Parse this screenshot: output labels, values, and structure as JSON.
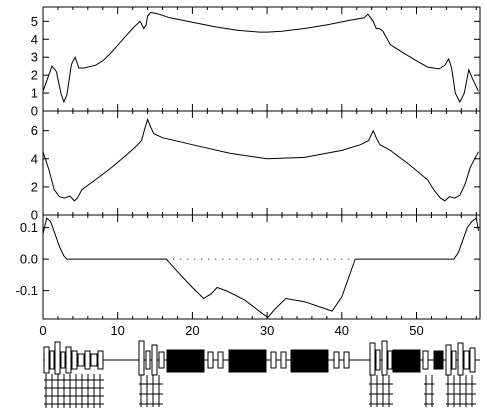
{
  "chart_data": [
    {
      "type": "line",
      "title": "",
      "xlabel": "",
      "ylabel": "",
      "xlim": [
        0,
        58.5
      ],
      "ylim": [
        0,
        5.8
      ],
      "yticks": [
        0,
        1,
        2,
        3,
        4,
        5
      ],
      "ytick_labels": [
        "0",
        "1",
        "2",
        "3",
        "4",
        "5"
      ],
      "series": [
        {
          "x": [
            0,
            0.6,
            1.2,
            1.8,
            2.4,
            2.8,
            3.2,
            3.8,
            4.3,
            4.8,
            5.5,
            7.0,
            8.0,
            9.0,
            10.5,
            12.0,
            13.0,
            13.5,
            13.8,
            14.0,
            14.4,
            15.0,
            15.5,
            17,
            20,
            23,
            26,
            29,
            30,
            32,
            35,
            38,
            41,
            43,
            43.5,
            44.2,
            44.6,
            45.0,
            45.5,
            46.5,
            48,
            50,
            51.5,
            53,
            53.8,
            54.3,
            54.7,
            55.2,
            55.8,
            56.4,
            57.0,
            57.5,
            58.3
          ],
          "y": [
            1.1,
            1.8,
            2.5,
            2.2,
            1.0,
            0.5,
            0.9,
            2.6,
            3.0,
            2.4,
            2.4,
            2.55,
            2.8,
            3.2,
            3.9,
            4.6,
            5.0,
            4.6,
            4.8,
            5.3,
            5.5,
            5.45,
            5.4,
            5.2,
            4.95,
            4.7,
            4.5,
            4.4,
            4.4,
            4.45,
            4.6,
            4.8,
            5.05,
            5.2,
            5.4,
            5.0,
            4.6,
            4.6,
            4.45,
            3.7,
            3.3,
            2.8,
            2.45,
            2.35,
            2.55,
            2.9,
            2.4,
            1.0,
            0.5,
            1.0,
            2.3,
            1.8,
            1.1
          ]
        }
      ]
    },
    {
      "type": "line",
      "title": "",
      "xlabel": "",
      "ylabel": "",
      "xlim": [
        0,
        58.5
      ],
      "ylim": [
        0,
        7.4
      ],
      "yticks": [
        0,
        2,
        4,
        6
      ],
      "ytick_labels": [
        "0",
        "2",
        "4",
        "6"
      ],
      "series": [
        {
          "x": [
            0,
            0.8,
            1.5,
            2.2,
            2.9,
            3.6,
            4.2,
            4.6,
            5.2,
            7,
            9,
            11,
            12.5,
            13.2,
            13.6,
            14.0,
            14.3,
            14.8,
            16,
            20,
            25,
            30,
            35,
            40,
            42.5,
            43.6,
            44.2,
            44.6,
            45.1,
            46.5,
            49,
            51.5,
            52.3,
            53.2,
            53.8,
            54.4,
            55.1,
            55.8,
            56.5,
            57.2,
            58.3
          ],
          "y": [
            4.5,
            3.2,
            1.8,
            1.3,
            1.2,
            1.35,
            1.0,
            1.2,
            1.8,
            2.5,
            3.3,
            4.2,
            4.9,
            5.3,
            6.1,
            6.8,
            6.4,
            5.8,
            5.5,
            5.0,
            4.4,
            4.0,
            4.1,
            4.6,
            5.0,
            5.3,
            6.0,
            5.5,
            5.0,
            4.6,
            3.6,
            2.5,
            1.8,
            1.2,
            1.0,
            1.3,
            1.2,
            1.4,
            2.2,
            3.4,
            4.5
          ]
        }
      ]
    },
    {
      "type": "line",
      "title": "",
      "xlabel": "",
      "ylabel": "",
      "xlim": [
        0,
        58.5
      ],
      "ylim": [
        -0.19,
        0.14
      ],
      "yticks": [
        -0.1,
        0.0,
        0.1
      ],
      "ytick_labels": [
        "-0.1",
        "0.0",
        "0.1"
      ],
      "xticks": [
        0,
        10,
        20,
        30,
        40,
        50
      ],
      "xtick_labels": [
        "0",
        "10",
        "20",
        "30",
        "40",
        "50"
      ],
      "reference_line": {
        "y": 0,
        "style": "dotted",
        "from_x": 16.5,
        "to_x": 41.8
      },
      "series": [
        {
          "x": [
            0,
            0.5,
            1.0,
            1.6,
            2.2,
            2.8,
            3.2,
            16.5,
            18,
            20,
            21.5,
            22.5,
            23.3,
            24.5,
            27,
            29.5,
            30.1,
            31,
            32.5,
            35,
            37.5,
            38.7,
            40,
            41.8,
            55,
            55.6,
            56.2,
            56.8,
            57.4,
            58.0,
            58.3
          ],
          "y": [
            0.08,
            0.13,
            0.12,
            0.08,
            0.04,
            0.01,
            0.0,
            0.0,
            -0.04,
            -0.09,
            -0.125,
            -0.11,
            -0.09,
            -0.1,
            -0.13,
            -0.175,
            -0.185,
            -0.16,
            -0.125,
            -0.135,
            -0.155,
            -0.165,
            -0.12,
            0.0,
            0.0,
            0.02,
            0.06,
            0.1,
            0.12,
            0.13,
            0.09
          ]
        }
      ]
    }
  ]
}
